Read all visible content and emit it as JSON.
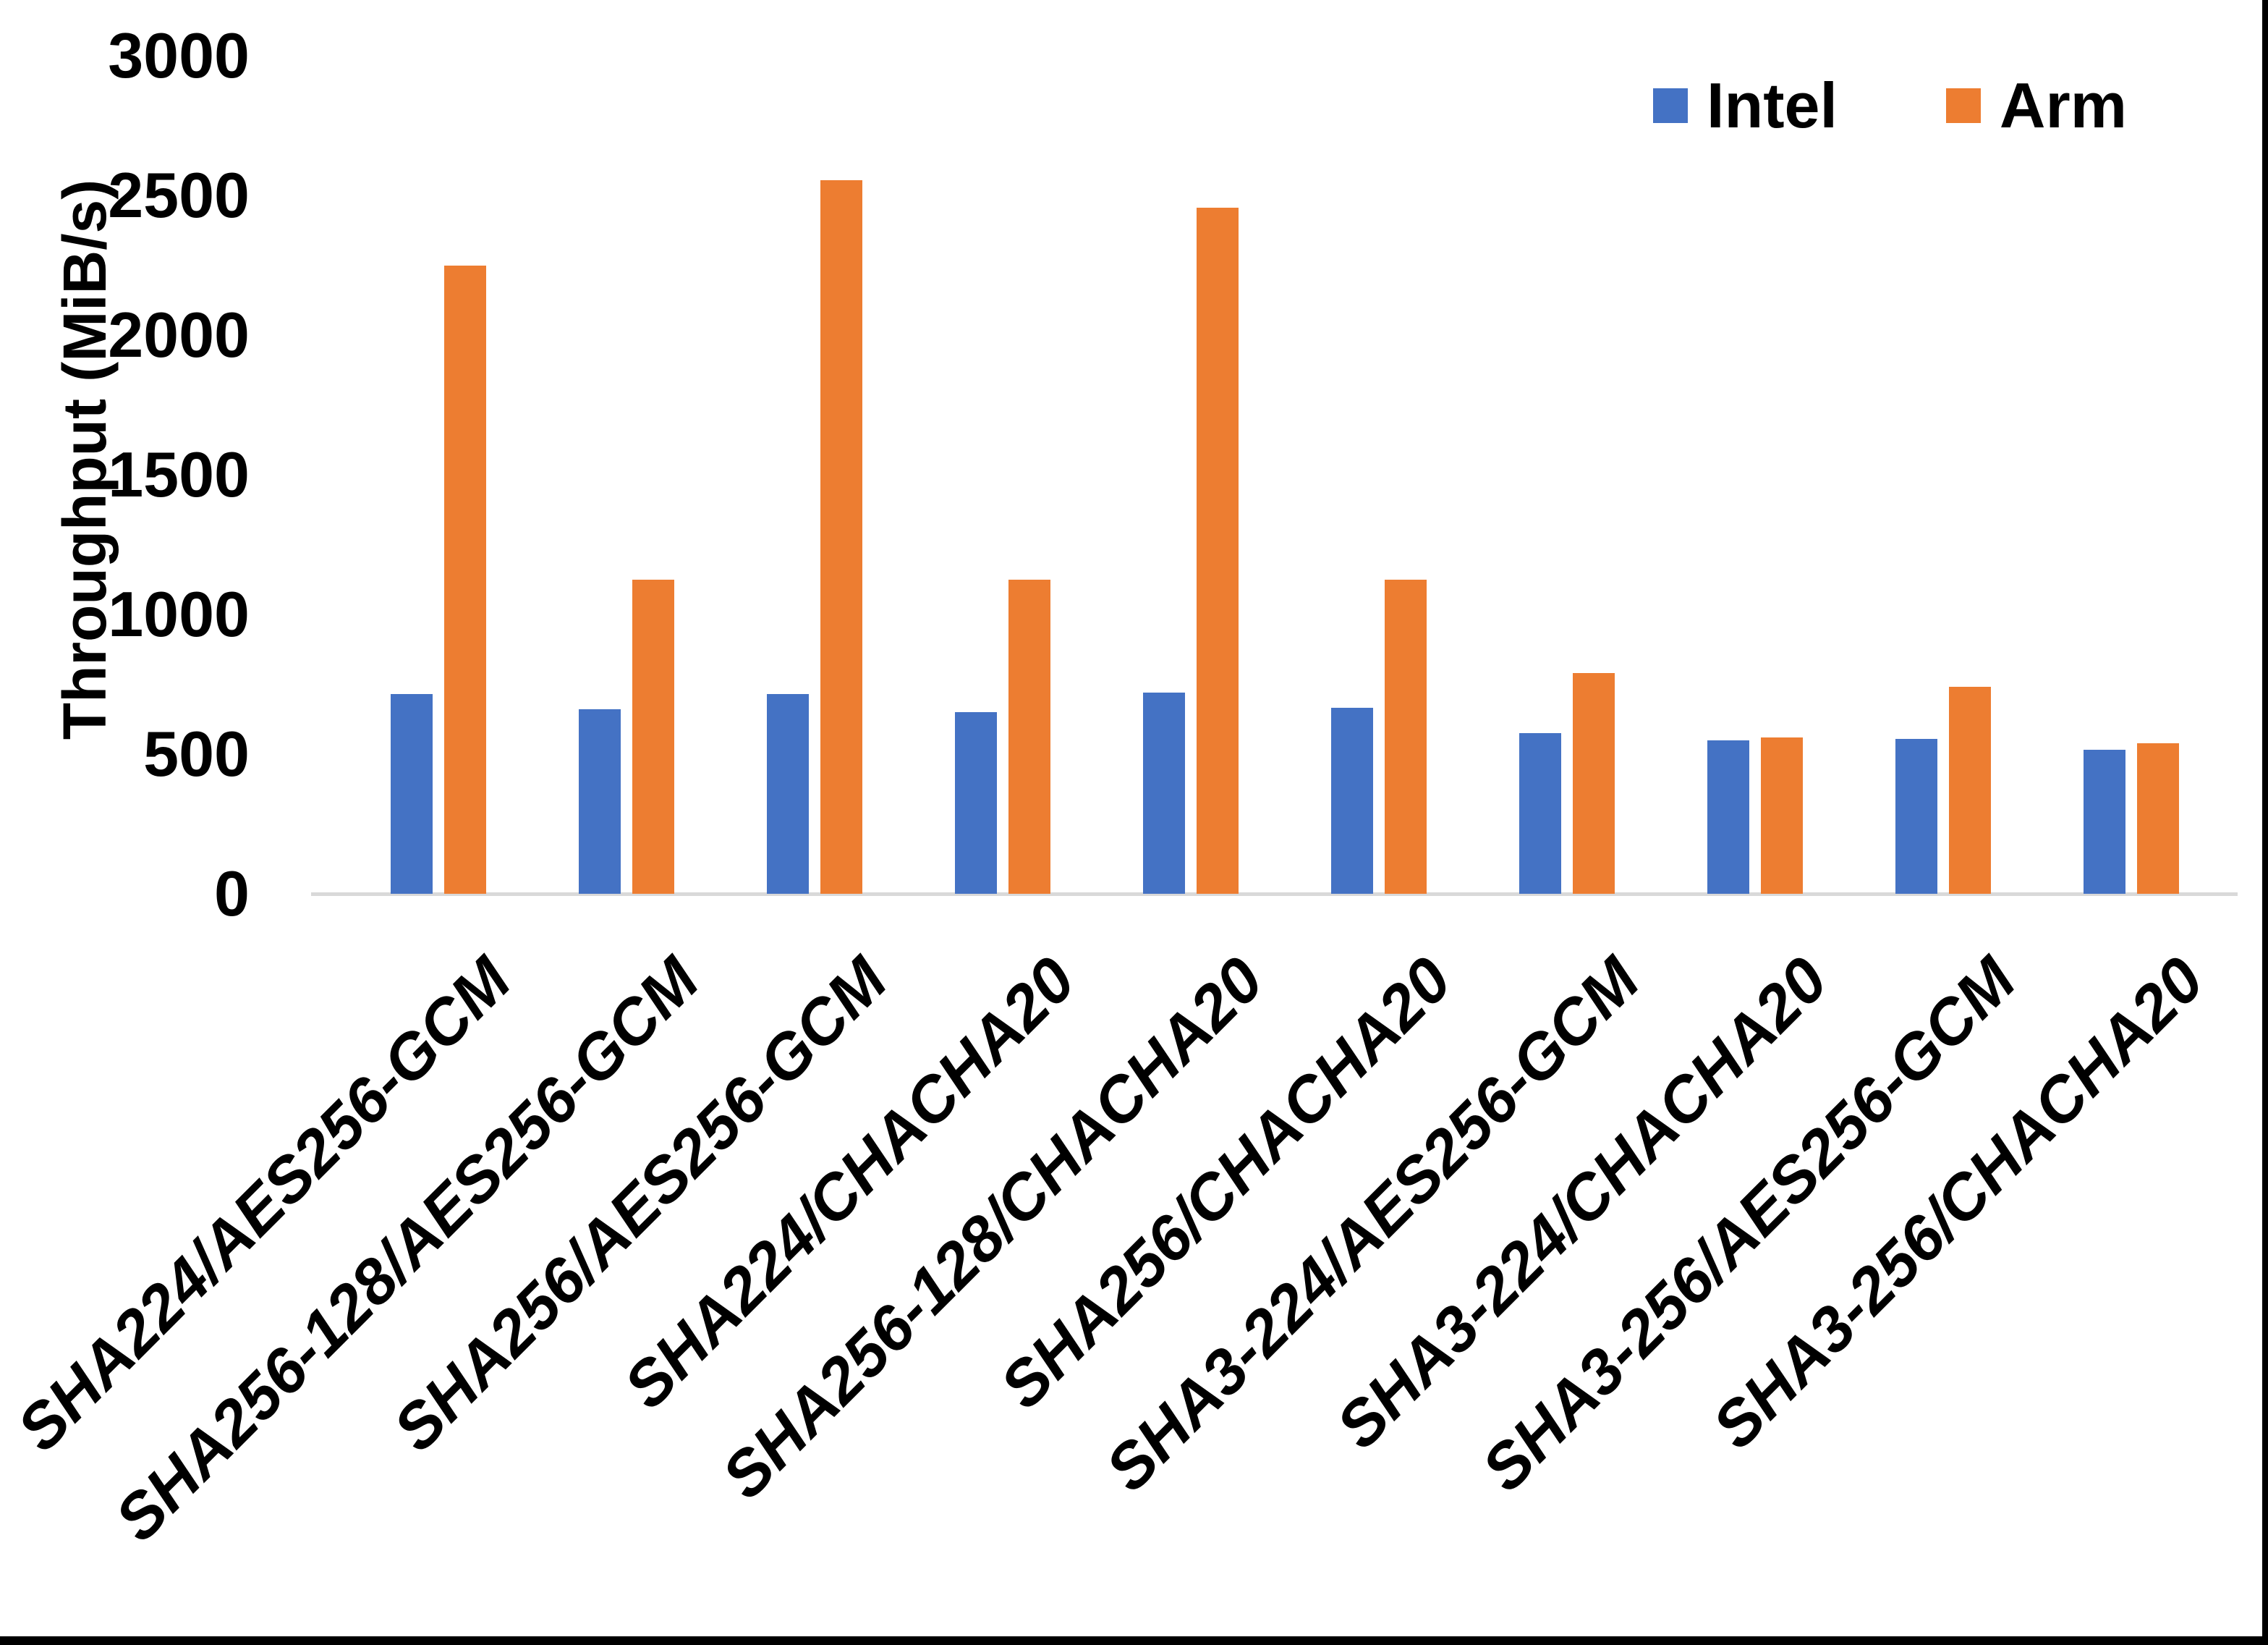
{
  "chart_data": {
    "type": "bar",
    "title": "",
    "xlabel": "",
    "ylabel": "Throughput (MiB/s)",
    "ylim": [
      0,
      3000
    ],
    "yticks": [
      0,
      500,
      1000,
      1500,
      2000,
      2500,
      3000
    ],
    "grid": false,
    "legend_position": "top-right",
    "axis_line_color": "#d9d9d9",
    "categories": [
      "SHA224/AES256-GCM",
      "SHA256-128/AES256-GCM",
      "SHA256/AES256-GCM",
      "SHA224/CHACHA20",
      "SHA256-128/CHACHA20",
      "SHA256/CHACHA20",
      "SHA3-224/AES256-GCM",
      "SHA3-224/CHACHA20",
      "SHA3-256/AES256-GCM",
      "SHA3-256/CHACHA20"
    ],
    "series": [
      {
        "name": "Intel",
        "color": "#4472C4",
        "values": [
          715,
          660,
          715,
          650,
          720,
          665,
          575,
          550,
          555,
          515
        ]
      },
      {
        "name": "Arm",
        "color": "#ED7D31",
        "values": [
          2250,
          1125,
          2555,
          1125,
          2455,
          1125,
          790,
          560,
          740,
          540
        ]
      }
    ]
  },
  "legend": {
    "items": [
      {
        "label": "Intel",
        "color": "#4472C4"
      },
      {
        "label": "Arm",
        "color": "#ED7D31"
      }
    ]
  }
}
